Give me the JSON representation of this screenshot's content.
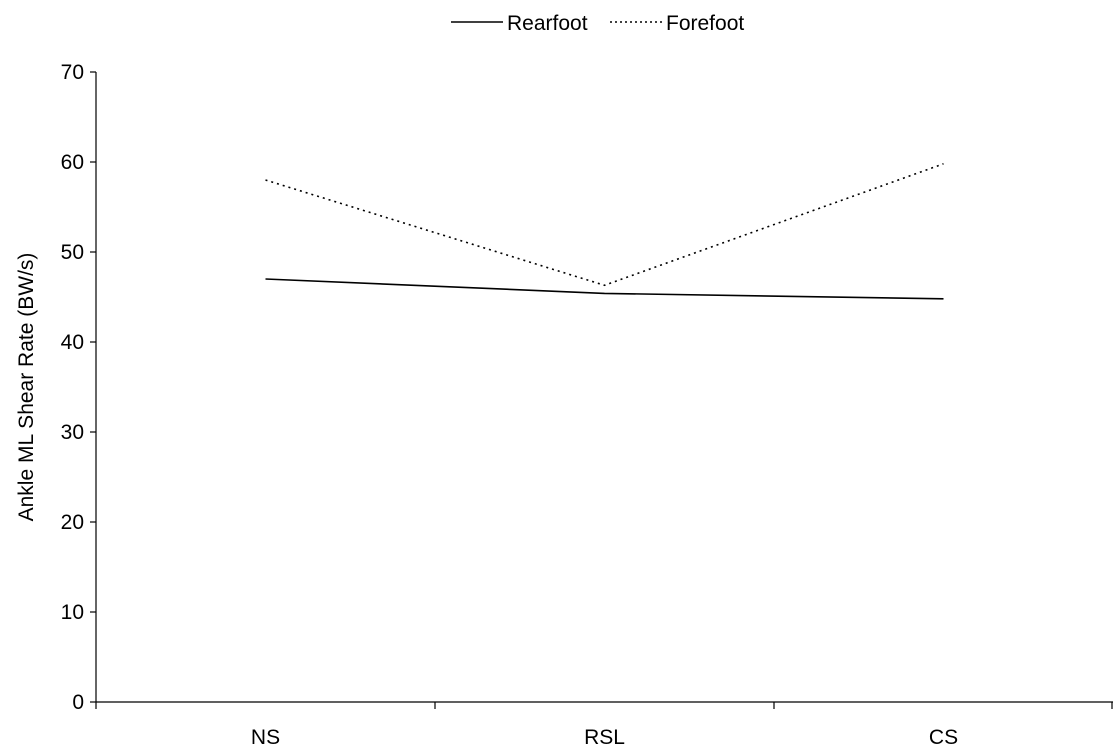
{
  "chart_data": {
    "type": "line",
    "title": "",
    "xlabel": "",
    "ylabel": "Ankle ML Shear Rate (BW/s)",
    "categories": [
      "NS",
      "RSL",
      "CS"
    ],
    "ylim": [
      0,
      70
    ],
    "yticks": [
      0,
      10,
      20,
      30,
      40,
      50,
      60,
      70
    ],
    "grid": false,
    "legend_position": "top-center",
    "series": [
      {
        "name": "Rearfoot",
        "values": [
          47.0,
          45.4,
          44.8
        ],
        "style": "solid",
        "color": "#000000"
      },
      {
        "name": "Forefoot",
        "values": [
          58.0,
          46.3,
          59.8
        ],
        "style": "dotted",
        "color": "#000000"
      }
    ]
  }
}
